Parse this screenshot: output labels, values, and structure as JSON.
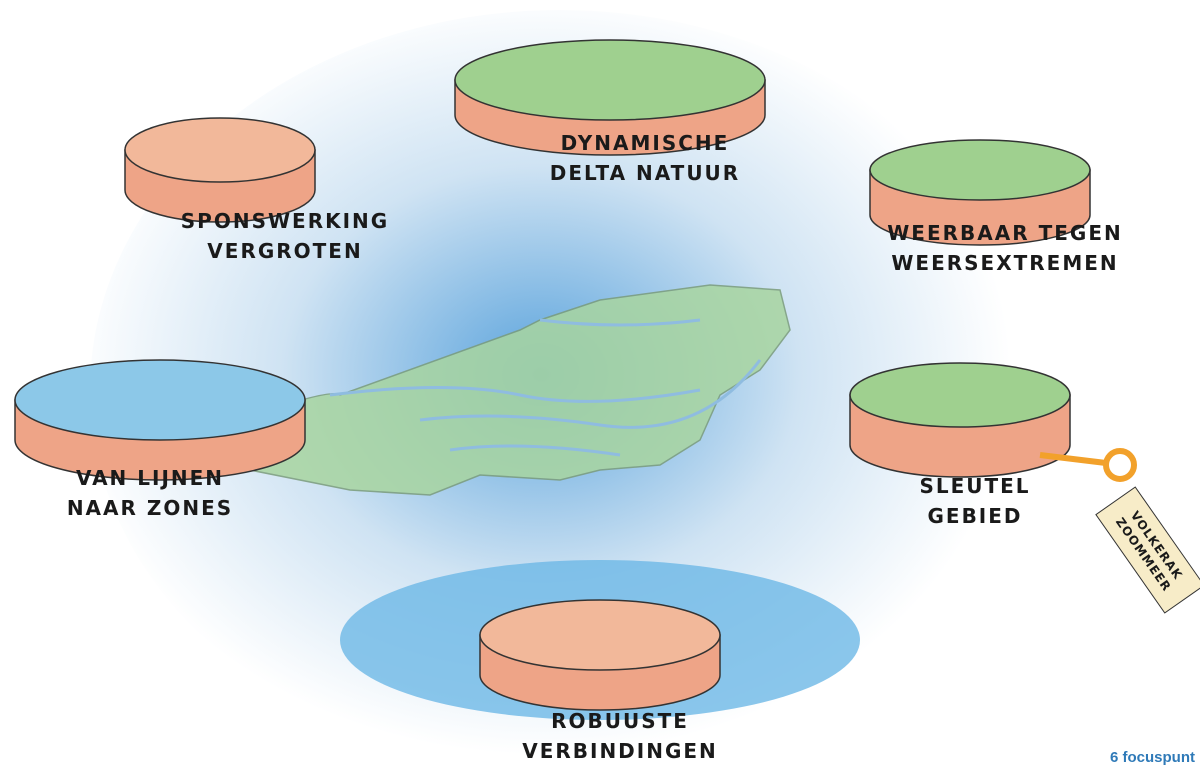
{
  "nodes": [
    {
      "label": [
        "SPONSWERKING",
        "VERGROTEN"
      ]
    },
    {
      "label": [
        "DYNAMISCHE",
        "DELTA NATUUR"
      ]
    },
    {
      "label": [
        "WEERBAAR TEGEN",
        "WEERSEXTREMEN"
      ]
    },
    {
      "label": [
        "VAN LIJNEN",
        "NAAR ZONES"
      ]
    },
    {
      "label": [
        "SLEUTEL",
        "GEBIED"
      ],
      "tag": [
        "VOLKERAK",
        "ZOOMMEER"
      ]
    },
    {
      "label": [
        "ROBUUSTE",
        "VERBINDINGEN"
      ]
    }
  ],
  "footer": "6 focuspunt"
}
